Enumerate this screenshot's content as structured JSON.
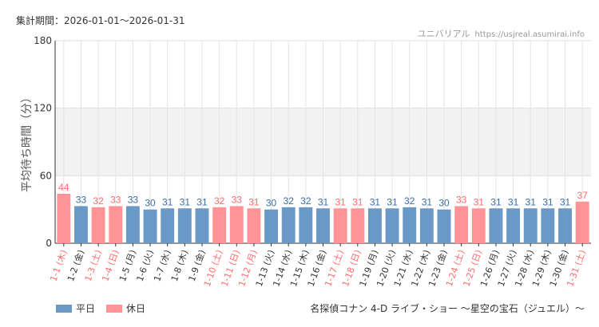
{
  "header": {
    "period": "集計期間：2026-01-01～2026-01-31",
    "site": "ユニバリアル",
    "url": "https://usjreal.asumirai.info"
  },
  "footer": {
    "attraction": "名探偵コナン 4-D ライブ・ショー ～星空の宝石（ジュエル）～"
  },
  "colors": {
    "weekday": "#6a99c8",
    "holiday": "#ff9496",
    "weekday_text": "#3a6ea5",
    "holiday_text": "#ff6b6e",
    "band": "#f2f2f2"
  },
  "chart_data": {
    "type": "bar",
    "ylabel": "平均待ち時間（分）",
    "ylim": [
      0,
      180
    ],
    "yticks": [
      0,
      60,
      120,
      180
    ],
    "shaded_band": [
      60,
      120
    ],
    "grid": true,
    "legend_position": "bottom-left",
    "series": [
      {
        "name": "平日",
        "color": "#6a99c8"
      },
      {
        "name": "休日",
        "color": "#ff9496"
      }
    ],
    "categories": [
      "1-1 (木)",
      "1-2 (金)",
      "1-3 (土)",
      "1-4 (日)",
      "1-5 (月)",
      "1-6 (火)",
      "1-7 (水)",
      "1-8 (木)",
      "1-9 (金)",
      "1-10 (土)",
      "1-11 (日)",
      "1-12 (月)",
      "1-13 (火)",
      "1-14 (水)",
      "1-15 (木)",
      "1-16 (金)",
      "1-17 (土)",
      "1-18 (日)",
      "1-19 (月)",
      "1-20 (火)",
      "1-21 (水)",
      "1-22 (木)",
      "1-23 (金)",
      "1-24 (土)",
      "1-25 (日)",
      "1-26 (月)",
      "1-27 (火)",
      "1-28 (水)",
      "1-29 (木)",
      "1-30 (金)",
      "1-31 (土)"
    ],
    "values": [
      44,
      33,
      32,
      33,
      33,
      30,
      31,
      31,
      31,
      32,
      33,
      31,
      30,
      32,
      32,
      31,
      31,
      31,
      31,
      31,
      32,
      31,
      30,
      33,
      31,
      31,
      31,
      31,
      31,
      31,
      37
    ],
    "holiday": [
      true,
      false,
      true,
      true,
      false,
      false,
      false,
      false,
      false,
      true,
      true,
      true,
      false,
      false,
      false,
      false,
      true,
      true,
      false,
      false,
      false,
      false,
      false,
      true,
      true,
      false,
      false,
      false,
      false,
      false,
      true
    ]
  }
}
